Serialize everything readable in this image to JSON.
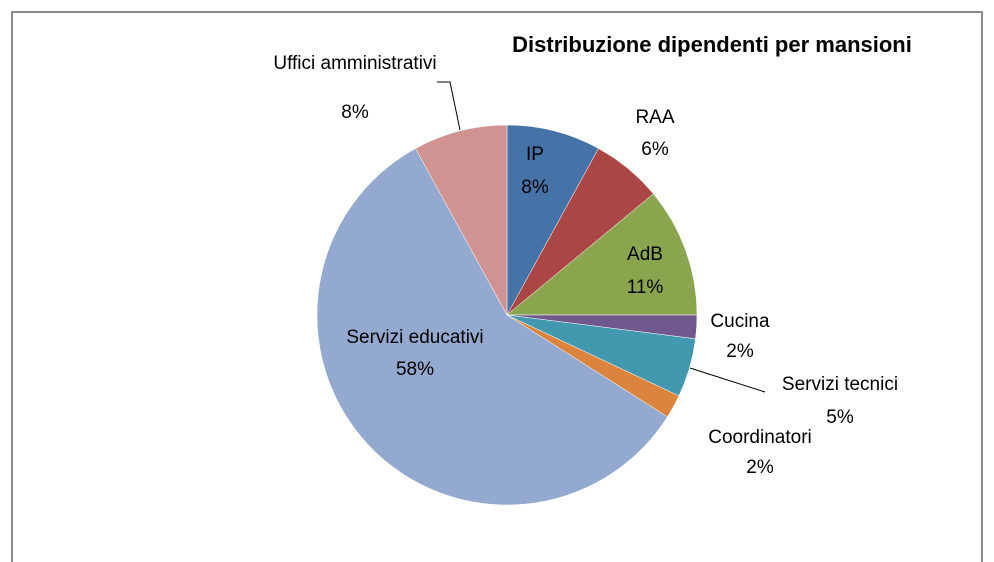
{
  "chart_data": {
    "type": "pie",
    "title": "Distribuzione dipendenti per mansioni",
    "categories": [
      "IP",
      "RAA",
      "AdB",
      "Cucina",
      "Servizi tecnici",
      "Coordinatori",
      "Servizi educativi",
      "Uffici amministrativi"
    ],
    "values": [
      8,
      6,
      11,
      2,
      5,
      2,
      58,
      8
    ],
    "value_labels": [
      "8%",
      "6%",
      "11%",
      "2%",
      "5%",
      "2%",
      "58%",
      "8%"
    ],
    "colors": [
      "#4572a7",
      "#aa4643",
      "#89a54e",
      "#71588f",
      "#4198af",
      "#db843d",
      "#93a9cf",
      "#d19392"
    ]
  }
}
